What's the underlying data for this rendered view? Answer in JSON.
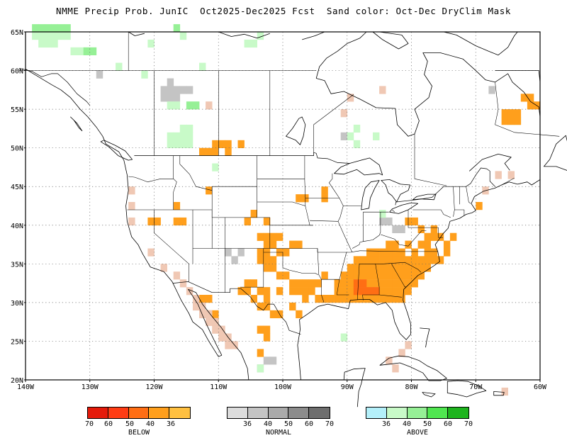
{
  "title": "NMME Precip Prob. JunIC  Oct2025-Dec2025 Fcst  Sand color: Oct-Dec DryClim Mask",
  "axes": {
    "lat_labels": [
      "20N",
      "25N",
      "30N",
      "35N",
      "40N",
      "45N",
      "50N",
      "55N",
      "60N",
      "65N"
    ],
    "lat_values": [
      20,
      25,
      30,
      35,
      40,
      45,
      50,
      55,
      60,
      65
    ],
    "lon_labels": [
      "140W",
      "130W",
      "120W",
      "110W",
      "100W",
      "90W",
      "80W",
      "70W",
      "60W"
    ],
    "lon_values": [
      -140,
      -130,
      -120,
      -110,
      -100,
      -90,
      -80,
      -70,
      -60
    ],
    "lon_range": [
      -140,
      -60
    ],
    "lat_range": [
      20,
      65
    ],
    "grid": "dotted"
  },
  "colors": {
    "below": [
      "#e41a0a",
      "#ff3c14",
      "#ff6e14",
      "#ff9f1c",
      "#ffc040"
    ],
    "normal": [
      "#dcdcdc",
      "#c4c4c4",
      "#aaaaaa",
      "#8c8c8c",
      "#6e6e6e"
    ],
    "above": [
      "#b4f0fa",
      "#c8fac8",
      "#96f096",
      "#50e650",
      "#1eb41e"
    ],
    "dryclim_mask": "#f0c8b4",
    "coast": "#000000",
    "border": "#000000"
  },
  "legends": {
    "below": {
      "ticks": [
        "70",
        "60",
        "50",
        "40",
        "36"
      ],
      "caption": "BELOW"
    },
    "normal": {
      "ticks": [
        "36",
        "40",
        "50",
        "60",
        "70"
      ],
      "caption": "NORMAL"
    },
    "above": {
      "ticks": [
        "36",
        "40",
        "50",
        "60",
        "70"
      ],
      "caption": "ABOVE"
    }
  },
  "map_data": {
    "below_40_50": [
      [
        -89,
        31
      ],
      [
        -88,
        31
      ],
      [
        -89,
        32
      ],
      [
        -88,
        32
      ],
      [
        -87,
        31
      ],
      [
        -86,
        31
      ]
    ],
    "below_36_40": [
      [
        -91,
        30
      ],
      [
        -90,
        30
      ],
      [
        -89,
        30
      ],
      [
        -88,
        30
      ],
      [
        -87,
        30
      ],
      [
        -86,
        30
      ],
      [
        -85,
        30
      ],
      [
        -84,
        30
      ],
      [
        -83,
        30
      ],
      [
        -82,
        30
      ],
      [
        -92,
        31
      ],
      [
        -91,
        31
      ],
      [
        -90,
        31
      ],
      [
        -85,
        31
      ],
      [
        -84,
        31
      ],
      [
        -83,
        31
      ],
      [
        -82,
        31
      ],
      [
        -81,
        31
      ],
      [
        -92,
        32
      ],
      [
        -91,
        32
      ],
      [
        -90,
        32
      ],
      [
        -87,
        32
      ],
      [
        -86,
        32
      ],
      [
        -85,
        32
      ],
      [
        -84,
        32
      ],
      [
        -83,
        32
      ],
      [
        -82,
        32
      ],
      [
        -81,
        32
      ],
      [
        -80,
        32
      ],
      [
        -91,
        33
      ],
      [
        -90,
        33
      ],
      [
        -89,
        33
      ],
      [
        -88,
        33
      ],
      [
        -87,
        33
      ],
      [
        -86,
        33
      ],
      [
        -85,
        33
      ],
      [
        -84,
        33
      ],
      [
        -83,
        33
      ],
      [
        -82,
        33
      ],
      [
        -81,
        33
      ],
      [
        -80,
        33
      ],
      [
        -79,
        33
      ],
      [
        -90,
        34
      ],
      [
        -89,
        34
      ],
      [
        -88,
        34
      ],
      [
        -87,
        34
      ],
      [
        -86,
        34
      ],
      [
        -85,
        34
      ],
      [
        -84,
        34
      ],
      [
        -83,
        34
      ],
      [
        -82,
        34
      ],
      [
        -81,
        34
      ],
      [
        -80,
        34
      ],
      [
        -79,
        34
      ],
      [
        -78,
        34
      ],
      [
        -89,
        35
      ],
      [
        -88,
        35
      ],
      [
        -87,
        35
      ],
      [
        -86,
        35
      ],
      [
        -85,
        35
      ],
      [
        -84,
        35
      ],
      [
        -83,
        35
      ],
      [
        -82,
        35
      ],
      [
        -81,
        35
      ],
      [
        -80,
        35
      ],
      [
        -79,
        35
      ],
      [
        -78,
        35
      ],
      [
        -77,
        35
      ],
      [
        -87,
        36
      ],
      [
        -86,
        36
      ],
      [
        -85,
        36
      ],
      [
        -84,
        36
      ],
      [
        -83,
        36
      ],
      [
        -82,
        36
      ],
      [
        -80,
        36
      ],
      [
        -78,
        36
      ],
      [
        -77,
        36
      ],
      [
        -84,
        37
      ],
      [
        -83,
        37
      ],
      [
        -81,
        37
      ],
      [
        -79,
        37
      ],
      [
        -78,
        37
      ],
      [
        -78,
        38
      ],
      [
        -77,
        38
      ],
      [
        -81,
        40
      ],
      [
        -80,
        40
      ],
      [
        -79,
        39
      ],
      [
        -77,
        39
      ],
      [
        -94,
        33
      ],
      [
        -95,
        32
      ],
      [
        -96,
        32
      ],
      [
        -97,
        32
      ],
      [
        -98,
        32
      ],
      [
        -99,
        32
      ],
      [
        -100,
        33
      ],
      [
        -101,
        33
      ],
      [
        -102,
        34
      ],
      [
        -103,
        34
      ],
      [
        -104,
        35
      ],
      [
        -103,
        35
      ],
      [
        -102,
        35
      ],
      [
        -101,
        36
      ],
      [
        -100,
        36
      ],
      [
        -103,
        36
      ],
      [
        -104,
        36
      ],
      [
        -102,
        37
      ],
      [
        -103,
        37
      ],
      [
        -105,
        32
      ],
      [
        -106,
        32
      ],
      [
        -107,
        31
      ],
      [
        -104,
        31
      ],
      [
        -103,
        31
      ],
      [
        -101,
        31
      ],
      [
        -99,
        31
      ],
      [
        -98,
        31
      ],
      [
        -97,
        31
      ],
      [
        -96,
        31
      ],
      [
        -94,
        30
      ],
      [
        -93,
        30
      ],
      [
        -92,
        30
      ],
      [
        -97,
        30
      ],
      [
        -95,
        30
      ],
      [
        -98,
        28
      ],
      [
        -99,
        29
      ],
      [
        -102,
        28
      ],
      [
        -101,
        28
      ],
      [
        -103,
        29
      ],
      [
        -103,
        30
      ],
      [
        -104,
        29
      ],
      [
        -105,
        30
      ],
      [
        -106,
        31
      ],
      [
        -103,
        26
      ],
      [
        -104,
        26
      ],
      [
        -103,
        25
      ],
      [
        -104,
        23
      ],
      [
        -112,
        28
      ],
      [
        -111,
        27
      ],
      [
        -111,
        28
      ],
      [
        -112,
        30
      ],
      [
        -113,
        30
      ],
      [
        -120,
        40
      ],
      [
        -121,
        40
      ],
      [
        -117,
        40
      ],
      [
        -116,
        40
      ],
      [
        -117,
        42
      ],
      [
        -112,
        44
      ],
      [
        -103,
        40
      ],
      [
        -113,
        49
      ],
      [
        -112,
        49
      ],
      [
        -111,
        49
      ],
      [
        -111,
        50
      ],
      [
        -110,
        50
      ],
      [
        -109,
        50
      ],
      [
        -109,
        49
      ],
      [
        -107,
        50
      ],
      [
        -94,
        43
      ],
      [
        -94,
        44
      ],
      [
        -98,
        43
      ],
      [
        -97,
        43
      ],
      [
        -105,
        41
      ],
      [
        -106,
        40
      ],
      [
        -104,
        38
      ],
      [
        -103,
        38
      ],
      [
        -102,
        38
      ],
      [
        -101,
        38
      ],
      [
        -99,
        37
      ],
      [
        -98,
        37
      ],
      [
        -66,
        54
      ],
      [
        -65,
        54
      ],
      [
        -64,
        54
      ],
      [
        -66,
        53
      ],
      [
        -65,
        53
      ],
      [
        -64,
        53
      ],
      [
        -63,
        56
      ],
      [
        -62,
        56
      ],
      [
        -62,
        55
      ],
      [
        -61,
        55
      ],
      [
        -70,
        42
      ],
      [
        -75,
        37
      ],
      [
        -74,
        38
      ],
      [
        -76,
        38
      ],
      [
        -75,
        36
      ],
      [
        -76,
        35
      ]
    ],
    "normal_36_40": [
      [
        -119,
        57
      ],
      [
        -118,
        57
      ],
      [
        -117,
        57
      ],
      [
        -116,
        57
      ],
      [
        -115,
        57
      ],
      [
        -119,
        56
      ],
      [
        -118,
        56
      ],
      [
        -117,
        56
      ],
      [
        -118,
        58
      ],
      [
        -129,
        59
      ],
      [
        -109,
        36
      ],
      [
        -108,
        35
      ],
      [
        -107,
        36
      ],
      [
        -103,
        22
      ],
      [
        -102,
        22
      ],
      [
        -104,
        21
      ],
      [
        -85,
        40
      ],
      [
        -84,
        40
      ],
      [
        -83,
        39
      ],
      [
        -82,
        39
      ],
      [
        -91,
        51
      ],
      [
        -68,
        57
      ]
    ],
    "above_36_40": [
      [
        -139,
        64
      ],
      [
        -138,
        64
      ],
      [
        -137,
        64
      ],
      [
        -136,
        64
      ],
      [
        -135,
        64
      ],
      [
        -134,
        64
      ],
      [
        -138,
        63
      ],
      [
        -137,
        63
      ],
      [
        -136,
        63
      ],
      [
        -133,
        62
      ],
      [
        -132,
        62
      ],
      [
        -121,
        63
      ],
      [
        -116,
        64
      ],
      [
        -106,
        63
      ],
      [
        -105,
        63
      ],
      [
        -104,
        64
      ],
      [
        -113,
        60
      ],
      [
        -126,
        60
      ],
      [
        -122,
        59
      ],
      [
        -118,
        55
      ],
      [
        -117,
        55
      ],
      [
        -116,
        52
      ],
      [
        -115,
        52
      ],
      [
        -116,
        51
      ],
      [
        -115,
        51
      ],
      [
        -117,
        51
      ],
      [
        -118,
        51
      ],
      [
        -118,
        50
      ],
      [
        -117,
        50
      ],
      [
        -116,
        50
      ],
      [
        -115,
        50
      ],
      [
        -111,
        47
      ],
      [
        -89,
        52
      ],
      [
        -90,
        51
      ],
      [
        -89,
        50
      ],
      [
        -86,
        51
      ],
      [
        -64,
        53
      ],
      [
        -65,
        53
      ],
      [
        -104,
        21
      ],
      [
        -85,
        41
      ],
      [
        -91,
        25
      ]
    ],
    "above_40_50": [
      [
        -139,
        65
      ],
      [
        -138,
        65
      ],
      [
        -137,
        65
      ],
      [
        -136,
        65
      ],
      [
        -135,
        65
      ],
      [
        -134,
        65
      ],
      [
        -117,
        65
      ],
      [
        -131,
        62
      ],
      [
        -130,
        62
      ],
      [
        -115,
        55
      ],
      [
        -114,
        55
      ]
    ],
    "dryclim_mask": [
      [
        -117,
        33
      ],
      [
        -116,
        32
      ],
      [
        -115,
        31
      ],
      [
        -114,
        30
      ],
      [
        -113,
        29
      ],
      [
        -112,
        28
      ],
      [
        -111,
        27
      ],
      [
        -110,
        26
      ],
      [
        -109,
        25
      ],
      [
        -108,
        24
      ],
      [
        -114,
        29
      ],
      [
        -113,
        28
      ],
      [
        -112,
        27
      ],
      [
        -111,
        26
      ],
      [
        -110,
        25
      ],
      [
        -109,
        24
      ],
      [
        -119,
        34
      ],
      [
        -121,
        36
      ],
      [
        -124,
        42
      ],
      [
        -124,
        44
      ],
      [
        -124,
        40
      ],
      [
        -82,
        23
      ],
      [
        -81,
        24
      ],
      [
        -83,
        21
      ],
      [
        -84,
        22
      ],
      [
        -66,
        18
      ],
      [
        -112,
        55
      ],
      [
        -90,
        56
      ],
      [
        -91,
        54
      ],
      [
        -85,
        57
      ],
      [
        -65,
        46
      ],
      [
        -67,
        46
      ],
      [
        -69,
        44
      ]
    ],
    "notes": ""
  }
}
